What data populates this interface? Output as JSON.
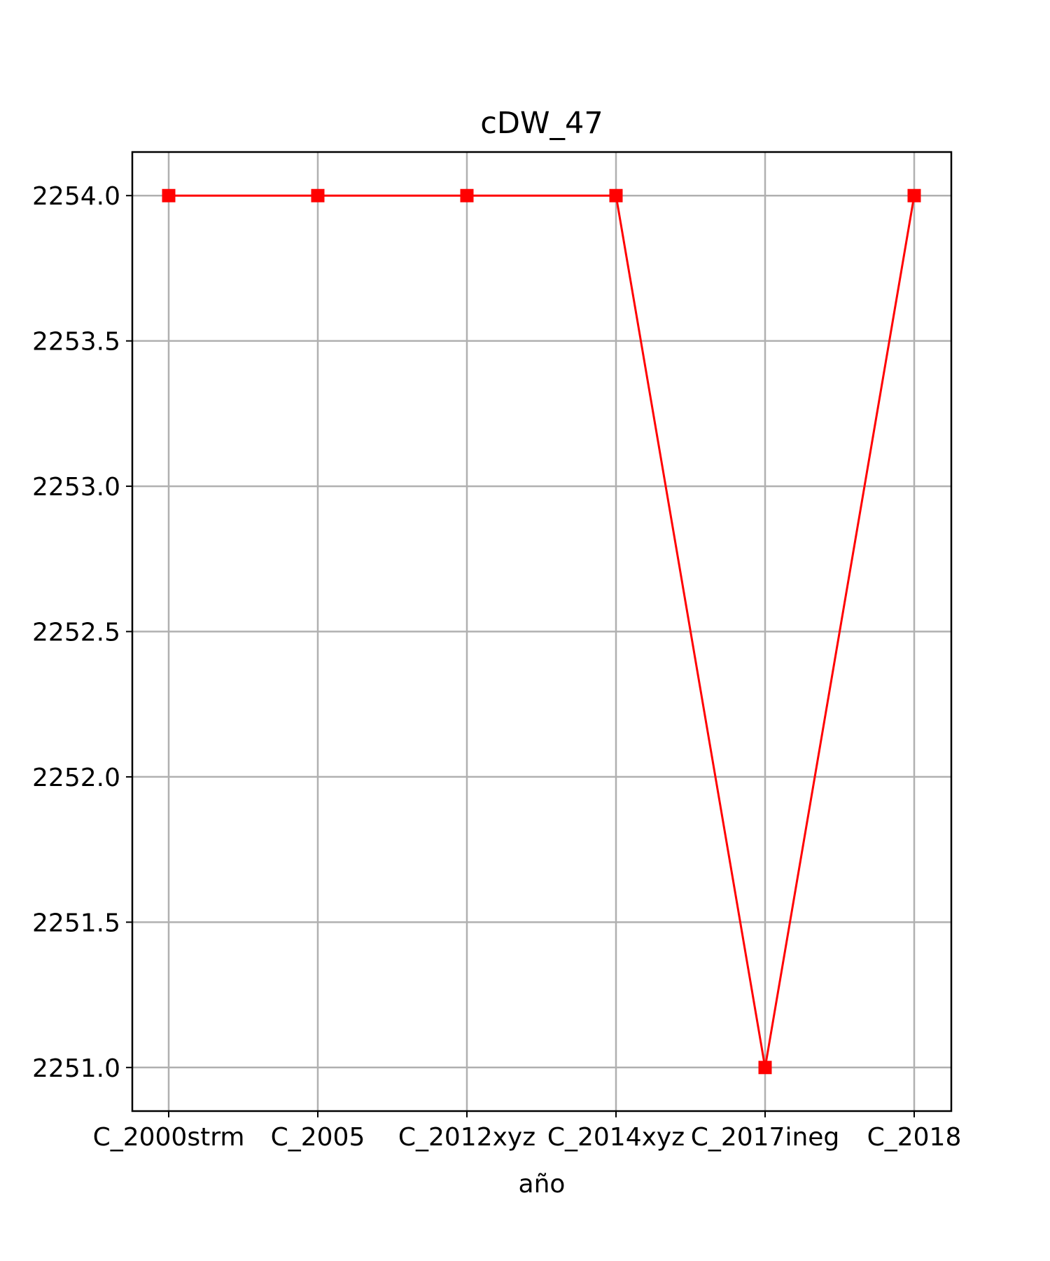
{
  "chart_data": {
    "type": "line",
    "title": "cDW_47",
    "xlabel": "año",
    "ylabel": "",
    "categories": [
      "C_2000strm",
      "C_2005",
      "C_2012xyz",
      "C_2014xyz",
      "C_2017ineg",
      "C_2018"
    ],
    "series": [
      {
        "values": [
          2254.0,
          2254.0,
          2254.0,
          2254.0,
          2251.0,
          2254.0
        ],
        "color": "#ff0000",
        "marker": "square"
      }
    ],
    "ylim": [
      2250.85,
      2254.15
    ],
    "yticks": [
      "2251.0",
      "2251.5",
      "2252.0",
      "2252.5",
      "2253.0",
      "2253.5",
      "2254.0"
    ],
    "grid": true
  }
}
